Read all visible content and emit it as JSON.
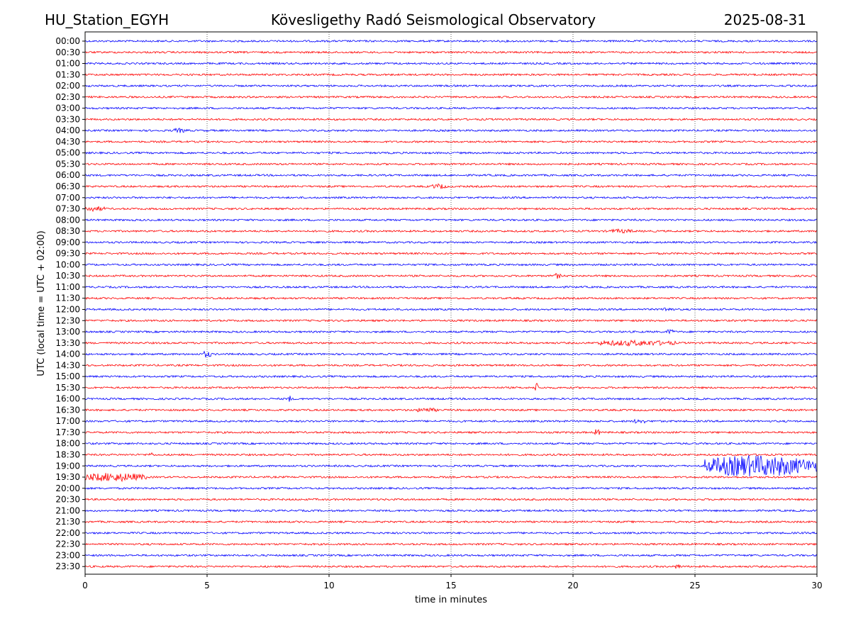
{
  "header": {
    "station": "HU_Station_EGYH",
    "observatory": "Kövesligethy Radó Seismological Observatory",
    "date": "2025-08-31"
  },
  "chart_data": {
    "type": "line",
    "title": "Kövesligethy Radó Seismological Observatory",
    "xlabel": "time in minutes",
    "ylabel": "UTC (local time = UTC + 02:00)",
    "xlim": [
      0,
      30
    ],
    "x_ticks": [
      0,
      5,
      10,
      15,
      20,
      25,
      30
    ],
    "grid": "vertical dotted lines at x ticks",
    "trace_colors": [
      "#0000ff",
      "#ff0000"
    ],
    "rows": [
      "00:00",
      "00:30",
      "01:00",
      "01:30",
      "02:00",
      "02:30",
      "03:00",
      "03:30",
      "04:00",
      "04:30",
      "05:00",
      "05:30",
      "06:00",
      "06:30",
      "07:00",
      "07:30",
      "08:00",
      "08:30",
      "09:00",
      "09:30",
      "10:00",
      "10:30",
      "11:00",
      "11:30",
      "12:00",
      "12:30",
      "13:00",
      "13:30",
      "14:00",
      "14:30",
      "15:00",
      "15:30",
      "16:00",
      "16:30",
      "17:00",
      "17:30",
      "18:00",
      "18:30",
      "19:00",
      "19:30",
      "20:00",
      "20:30",
      "21:00",
      "21:30",
      "22:00",
      "22:30",
      "23:00",
      "23:30"
    ],
    "events": [
      {
        "row": "19:00",
        "start_min": 25.4,
        "end_min": 30,
        "amplitude": 1.0
      },
      {
        "row": "19:30",
        "start_min": 0,
        "end_min": 2.5,
        "amplitude": 0.35
      },
      {
        "row": "13:30",
        "start_min": 21.0,
        "end_min": 24.2,
        "amplitude": 0.2
      },
      {
        "row": "14:00",
        "start_min": 4.8,
        "end_min": 5.2,
        "amplitude": 0.25
      },
      {
        "row": "15:30",
        "start_min": 18.4,
        "end_min": 18.6,
        "amplitude": 0.4
      },
      {
        "row": "16:00",
        "start_min": 8.3,
        "end_min": 8.5,
        "amplitude": 0.25
      },
      {
        "row": "16:30",
        "start_min": 13.6,
        "end_min": 14.4,
        "amplitude": 0.15
      },
      {
        "row": "06:30",
        "start_min": 14.2,
        "end_min": 14.8,
        "amplitude": 0.18
      },
      {
        "row": "12:00",
        "start_min": 23.7,
        "end_min": 24.1,
        "amplitude": 0.18
      },
      {
        "row": "13:00",
        "start_min": 23.8,
        "end_min": 24.2,
        "amplitude": 0.15
      },
      {
        "row": "07:30",
        "start_min": 0,
        "end_min": 0.8,
        "amplitude": 0.18
      },
      {
        "row": "17:30",
        "start_min": 20.9,
        "end_min": 21.1,
        "amplitude": 0.3
      },
      {
        "row": "04:00",
        "start_min": 3.6,
        "end_min": 4.2,
        "amplitude": 0.15
      },
      {
        "row": "10:30",
        "start_min": 19.2,
        "end_min": 19.5,
        "amplitude": 0.2
      },
      {
        "row": "18:30",
        "start_min": 2.6,
        "end_min": 2.8,
        "amplitude": 0.18
      },
      {
        "row": "17:00",
        "start_min": 22.5,
        "end_min": 23.0,
        "amplitude": 0.15
      },
      {
        "row": "08:30",
        "start_min": 21.5,
        "end_min": 22.5,
        "amplitude": 0.12
      },
      {
        "row": "23:30",
        "start_min": 24.2,
        "end_min": 24.4,
        "amplitude": 0.2
      }
    ]
  }
}
